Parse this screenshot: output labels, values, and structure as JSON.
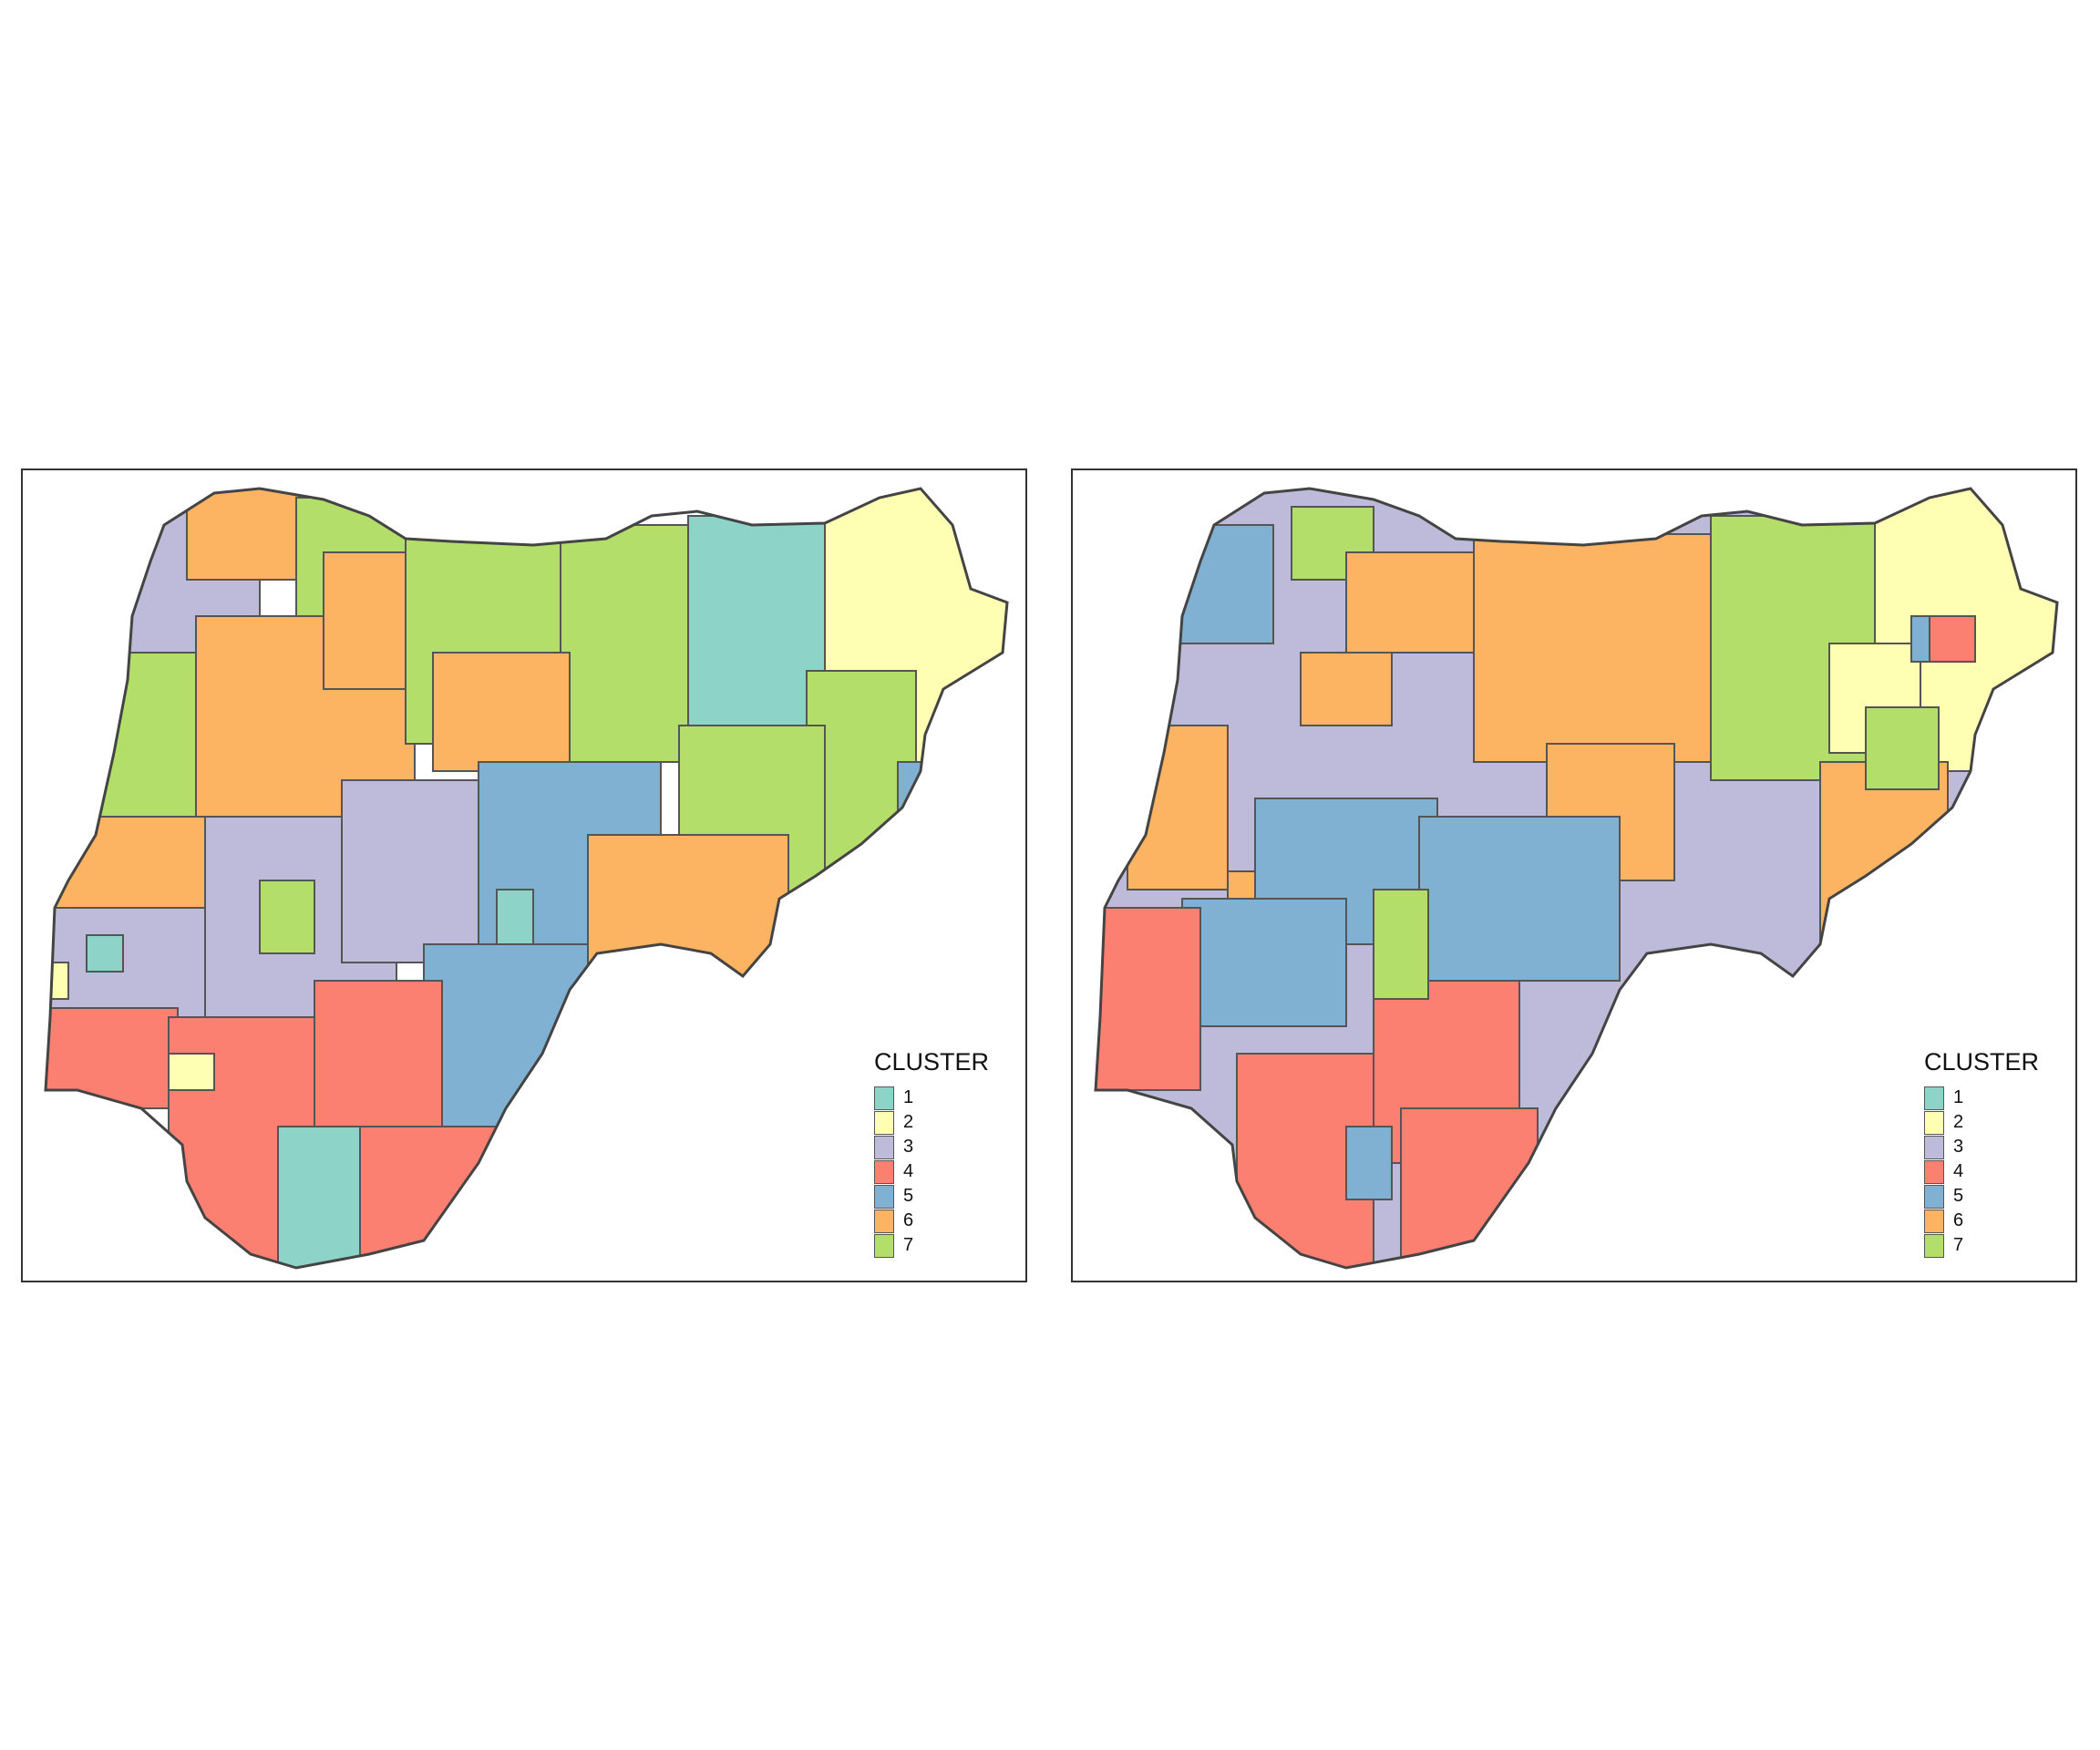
{
  "maps": [
    {
      "legend": {
        "title": "CLUSTER",
        "items": [
          {
            "label": "1",
            "color": "#8DD3C7"
          },
          {
            "label": "2",
            "color": "#FFFFB3"
          },
          {
            "label": "3",
            "color": "#BEBADA"
          },
          {
            "label": "4",
            "color": "#FB8072"
          },
          {
            "label": "5",
            "color": "#80B1D3"
          },
          {
            "label": "6",
            "color": "#FDB462"
          },
          {
            "label": "7",
            "color": "#B3DE69"
          }
        ]
      }
    },
    {
      "legend": {
        "title": "CLUSTER",
        "items": [
          {
            "label": "1",
            "color": "#8DD3C7"
          },
          {
            "label": "2",
            "color": "#FFFFB3"
          },
          {
            "label": "3",
            "color": "#BEBADA"
          },
          {
            "label": "4",
            "color": "#FB8072"
          },
          {
            "label": "5",
            "color": "#80B1D3"
          },
          {
            "label": "6",
            "color": "#FDB462"
          },
          {
            "label": "7",
            "color": "#B3DE69"
          }
        ]
      }
    }
  ]
}
